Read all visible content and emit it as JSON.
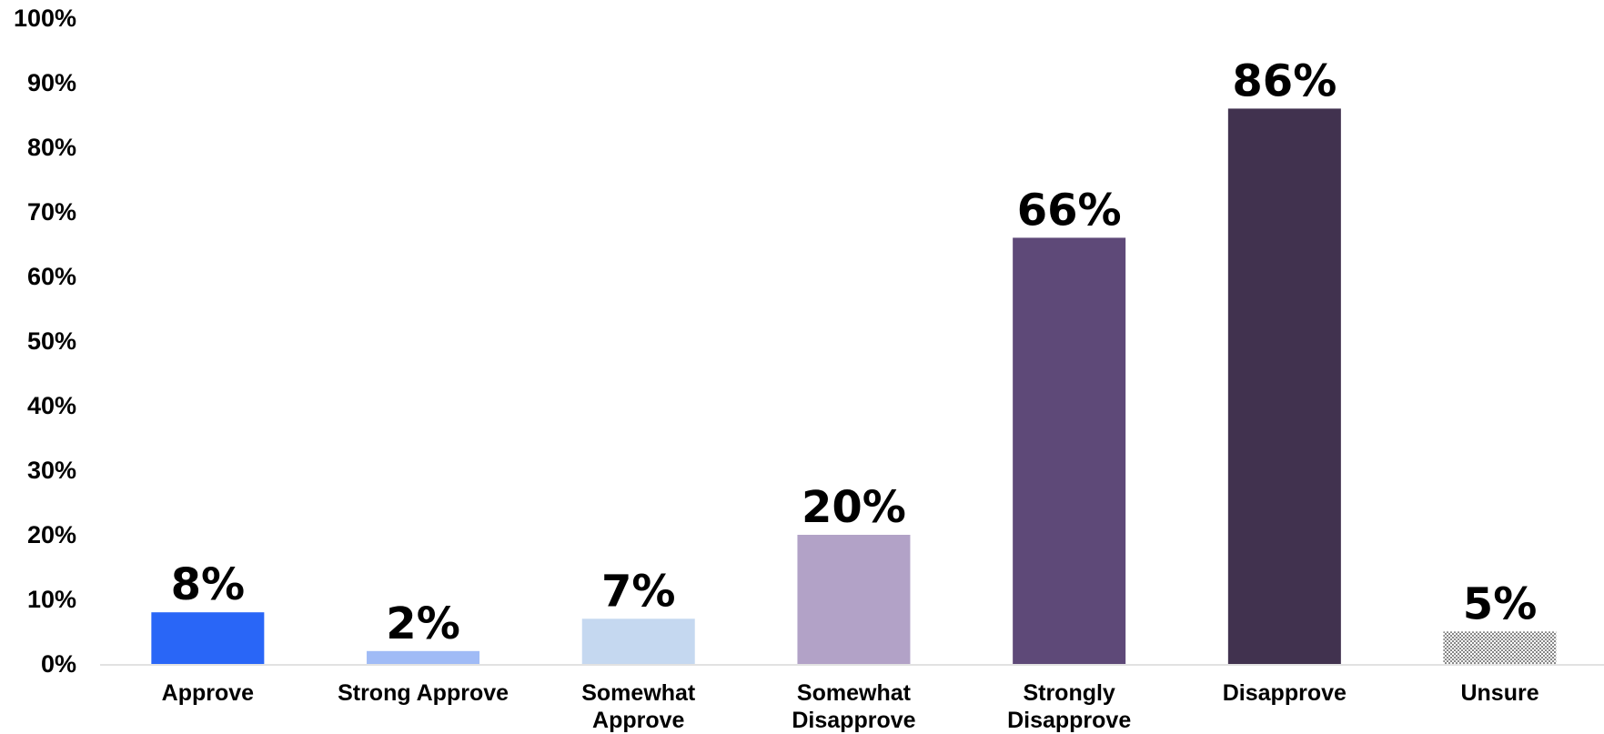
{
  "chart_data": {
    "type": "bar",
    "categories": [
      [
        "Approve"
      ],
      [
        "Strong Approve"
      ],
      [
        "Somewhat",
        "Approve"
      ],
      [
        "Somewhat",
        "Disapprove"
      ],
      [
        "Strongly",
        "Disapprove"
      ],
      [
        "Disapprove"
      ],
      [
        "Unsure"
      ]
    ],
    "values": [
      8,
      2,
      7,
      20,
      66,
      86,
      5
    ],
    "data_labels": [
      "8%",
      "2%",
      "7%",
      "20%",
      "66%",
      "86%",
      "5%"
    ],
    "colors": [
      "#2966f7",
      "#a0bbf6",
      "#c5d8f0",
      "#b2a2c7",
      "#5e4978",
      "#41324f",
      "#dotted"
    ],
    "title": "",
    "xlabel": "",
    "ylabel": "",
    "ylim": [
      0,
      100
    ],
    "ytick_labels": [
      "0%",
      "10%",
      "20%",
      "30%",
      "40%",
      "50%",
      "60%",
      "70%",
      "80%",
      "90%",
      "100%"
    ],
    "grid": false,
    "legend": "none"
  }
}
